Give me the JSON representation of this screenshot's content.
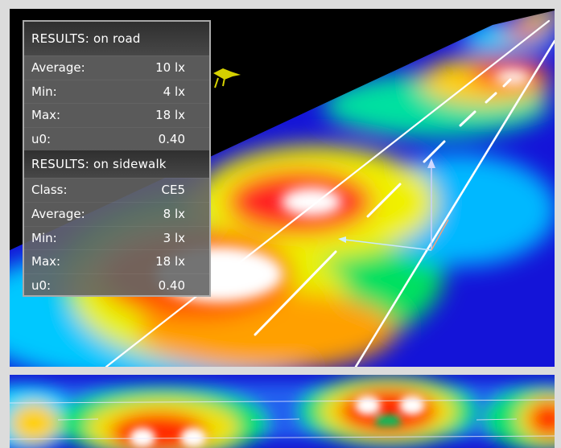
{
  "road": {
    "title": "RESULTS: on road",
    "rows": [
      {
        "label": "Average:",
        "value": "10 lx"
      },
      {
        "label": "Min:",
        "value": "4 lx"
      },
      {
        "label": "Max:",
        "value": "18 lx"
      },
      {
        "label": "u0:",
        "value": "0.40"
      }
    ]
  },
  "sidewalk": {
    "title": "RESULTS: on sidewalk",
    "rows": [
      {
        "label": "Class:",
        "value": "CE5"
      },
      {
        "label": "Average:",
        "value": "8 lx"
      },
      {
        "label": "Min:",
        "value": "3 lx"
      },
      {
        "label": "Max:",
        "value": "18 lx"
      },
      {
        "label": "u0:",
        "value": "0.40"
      }
    ]
  },
  "colors": {
    "viewport_bg": "#000000",
    "panel_bg": "#646464",
    "panel_border": "#a9a9a9"
  }
}
